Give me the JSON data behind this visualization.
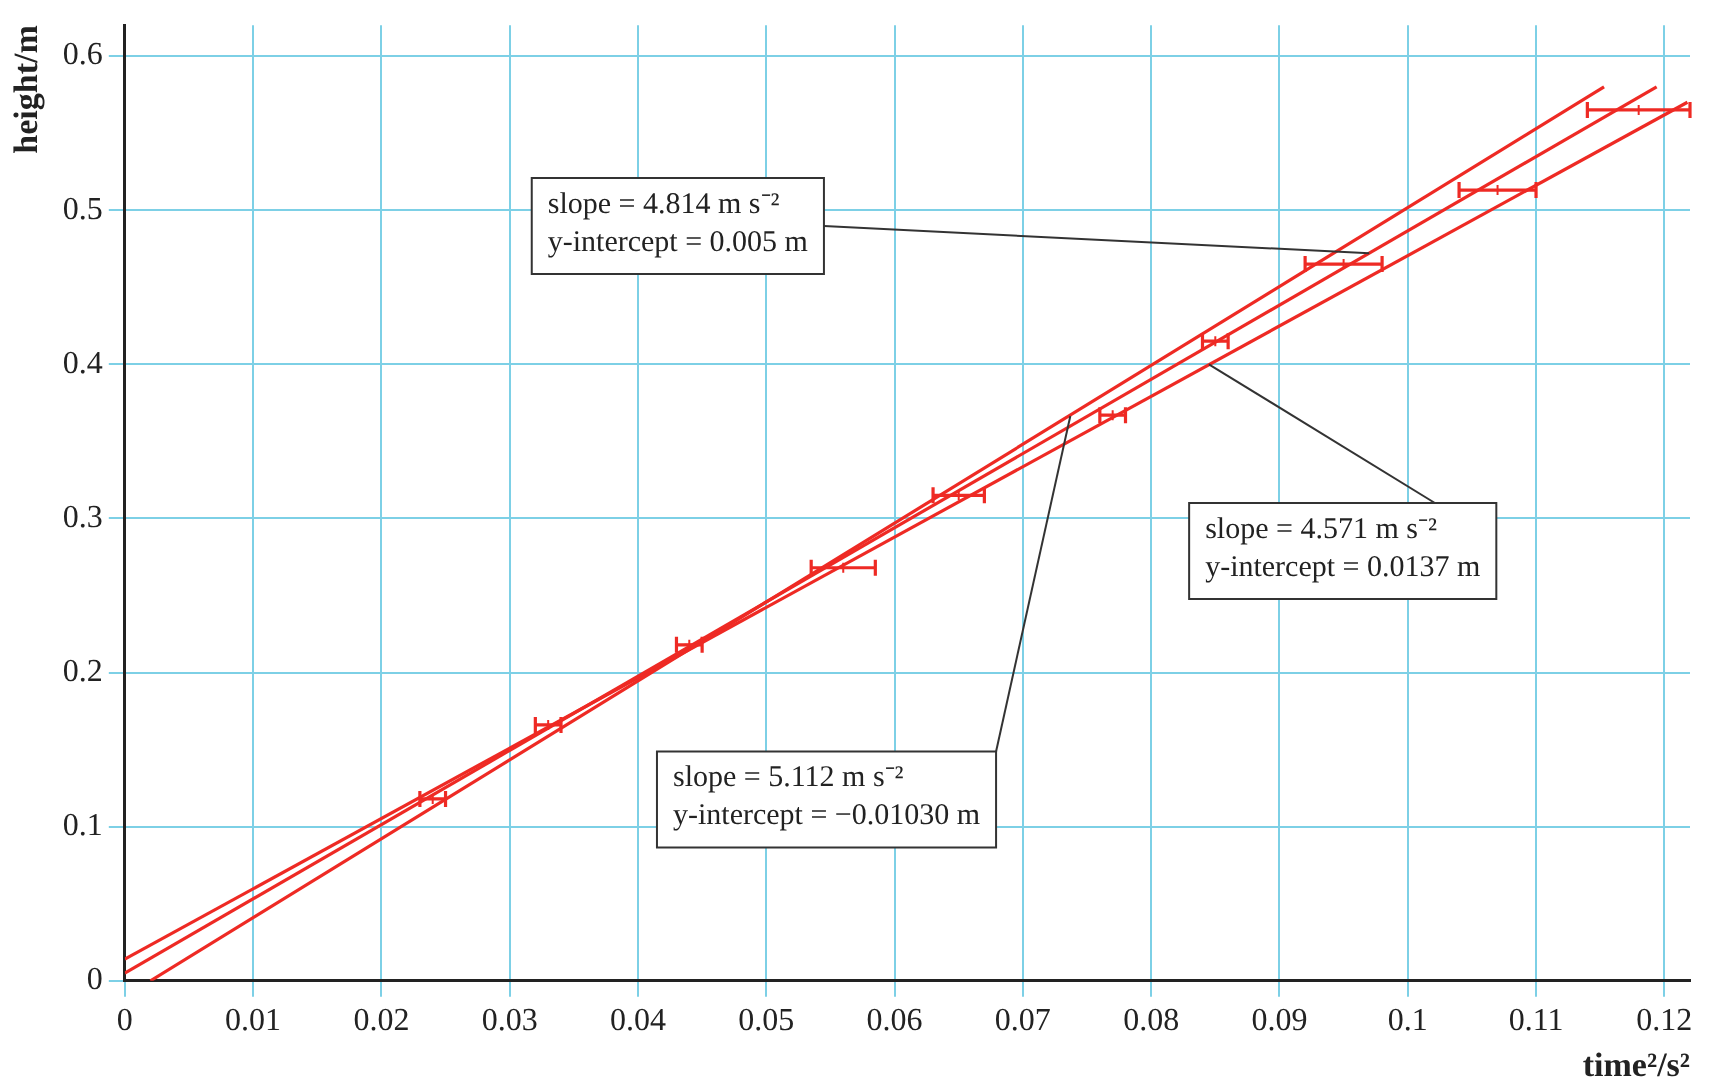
{
  "chart_data": {
    "type": "scatter",
    "xlabel": "time²/s²",
    "ylabel": "height/m",
    "xlim": [
      0,
      0.122
    ],
    "ylim": [
      0,
      0.62
    ],
    "xticks": [
      0,
      0.01,
      0.02,
      0.03,
      0.04,
      0.05,
      0.06,
      0.07,
      0.08,
      0.09,
      0.1,
      0.11,
      0.12
    ],
    "yticks": [
      0,
      0.1,
      0.2,
      0.3,
      0.4,
      0.5,
      0.6
    ],
    "grid": true,
    "legend": false,
    "series": [
      {
        "type": "scatter",
        "color": "#ee2a24",
        "marker": "cross",
        "x": [
          0.024,
          0.033,
          0.044,
          0.056,
          0.065,
          0.077,
          0.085,
          0.095,
          0.107,
          0.118
        ],
        "values": [
          0.118,
          0.166,
          0.218,
          0.268,
          0.315,
          0.367,
          0.415,
          0.465,
          0.513,
          0.565
        ],
        "xerrors": [
          0.001,
          0.001,
          0.001,
          0.0025,
          0.002,
          0.001,
          0.001,
          0.003,
          0.003,
          0.004
        ]
      },
      {
        "type": "line",
        "color": "#ee2a24",
        "marker": "none",
        "x": [
          0,
          0.1194
        ],
        "values": [
          0.005,
          0.58
        ]
      },
      {
        "type": "line",
        "color": "#ee2a24",
        "marker": "none",
        "x": [
          0,
          0.1218
        ],
        "values": [
          0.014,
          0.57
        ]
      },
      {
        "type": "line",
        "color": "#ee2a24",
        "marker": "none",
        "x": [
          0.002,
          0.1153
        ],
        "values": [
          0,
          0.58
        ]
      }
    ],
    "annotations": [
      {
        "text": "slope = 4.814 m s⁻²\ny-intercept = 0.005 m",
        "x": 0.097,
        "y": 0.472
      },
      {
        "text": "slope = 4.571 m s⁻²\ny-intercept = 0.0137 m",
        "x": 0.0845,
        "y": 0.4
      },
      {
        "text": "slope = 5.112 m s⁻²\ny-intercept = −0.01030 m",
        "x": 0.0737,
        "y": 0.3665
      }
    ]
  }
}
